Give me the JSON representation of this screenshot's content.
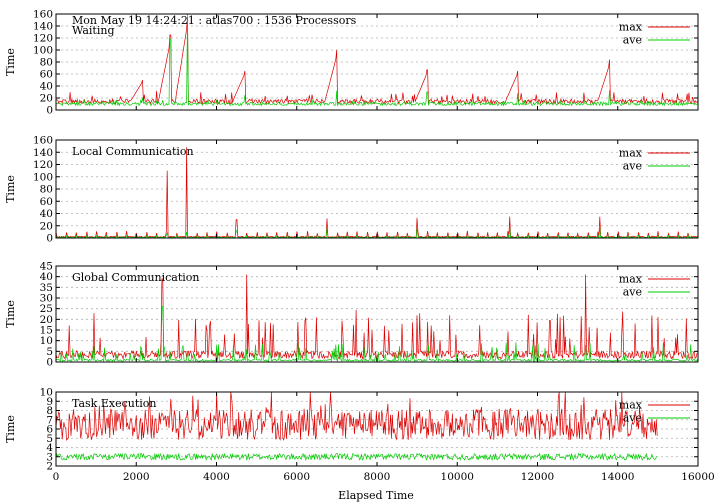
{
  "header": {
    "title": "Mon May 19 14:24:21 : atlas700 : 1536 Processors"
  },
  "xaxis": {
    "label": "Elapsed Time",
    "ticks": [
      0,
      2000,
      4000,
      6000,
      8000,
      10000,
      12000,
      14000,
      16000
    ],
    "range": [
      0,
      16000
    ]
  },
  "colors": {
    "max": "#dd0000",
    "ave": "#00cc00"
  },
  "chart_data": [
    {
      "type": "line",
      "title": "Waiting",
      "ylabel": "Time",
      "ylim": [
        0,
        160
      ],
      "yticks": [
        0,
        20,
        40,
        60,
        80,
        100,
        120,
        140,
        160
      ],
      "legend": [
        "max",
        "ave"
      ],
      "legend_position": "top-right",
      "grid": true,
      "baseline": {
        "max": 14,
        "ave": 10
      },
      "spikes": [
        {
          "x": 2150,
          "max": 50,
          "ave": 20
        },
        {
          "x": 2850,
          "max": 125,
          "ave": 118
        },
        {
          "x": 3270,
          "max": 155,
          "ave": 160
        },
        {
          "x": 4700,
          "max": 65,
          "ave": 25
        },
        {
          "x": 7000,
          "max": 100,
          "ave": 32
        },
        {
          "x": 9250,
          "max": 67,
          "ave": 30
        },
        {
          "x": 11500,
          "max": 65,
          "ave": 28
        },
        {
          "x": 13800,
          "max": 84,
          "ave": 33
        }
      ]
    },
    {
      "type": "line",
      "title": "Local Communication",
      "ylabel": "Time",
      "ylim": [
        0,
        160
      ],
      "yticks": [
        0,
        20,
        40,
        60,
        80,
        100,
        120,
        140,
        160
      ],
      "legend": [
        "max",
        "ave"
      ],
      "legend_position": "top-right",
      "grid": true,
      "baseline": {
        "max": 2,
        "ave": 1
      },
      "spikes": [
        {
          "x": 2770,
          "max": 110,
          "ave": 8
        },
        {
          "x": 3260,
          "max": 148,
          "ave": 10
        },
        {
          "x": 4500,
          "max": 30,
          "ave": 12
        },
        {
          "x": 6750,
          "max": 32,
          "ave": 15
        },
        {
          "x": 9000,
          "max": 33,
          "ave": 15
        },
        {
          "x": 11300,
          "max": 35,
          "ave": 16
        },
        {
          "x": 13550,
          "max": 35,
          "ave": 16
        }
      ]
    },
    {
      "type": "line",
      "title": "Global Communication",
      "ylabel": "Time",
      "ylim": [
        0,
        45
      ],
      "yticks": [
        0,
        5,
        10,
        15,
        20,
        25,
        30,
        35,
        40,
        45
      ],
      "legend": [
        "max",
        "ave"
      ],
      "legend_position": "top-right",
      "grid": true,
      "baseline": {
        "max": 4,
        "ave": 1
      },
      "spikes": [
        {
          "x": 2650,
          "max": 39,
          "ave": 26
        },
        {
          "x": 4750,
          "max": 41,
          "ave": 6
        },
        {
          "x": 13200,
          "max": 41,
          "ave": 8
        }
      ]
    },
    {
      "type": "line",
      "title": "Task Execution",
      "ylabel": "Time",
      "ylim": [
        2,
        10
      ],
      "yticks": [
        2,
        3,
        4,
        5,
        6,
        7,
        8,
        9,
        10
      ],
      "legend": [
        "max",
        "ave"
      ],
      "legend_position": "top-right",
      "grid": true,
      "x_end": 15000,
      "baseline": {
        "max": 6.5,
        "ave": 3
      },
      "spikes": []
    }
  ]
}
